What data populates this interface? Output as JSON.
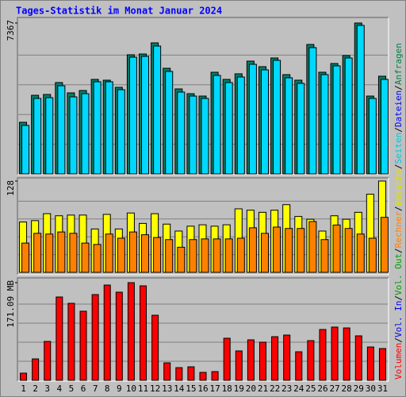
{
  "chart_data": {
    "type": "bar",
    "title": "Tages-Statistik im Monat Januar 2024",
    "categories": [
      "1",
      "2",
      "3",
      "4",
      "5",
      "6",
      "7",
      "8",
      "9",
      "10",
      "11",
      "12",
      "13",
      "14",
      "15",
      "16",
      "17",
      "18",
      "19",
      "20",
      "21",
      "22",
      "23",
      "24",
      "25",
      "26",
      "27",
      "28",
      "29",
      "30",
      "31"
    ],
    "category_colors": [
      "#000",
      "#000",
      "#000",
      "#000",
      "#000",
      "#008040",
      "#008040",
      "#000",
      "#000",
      "#000",
      "#000",
      "#000",
      "#008040",
      "#008040",
      "#000",
      "#000",
      "#000",
      "#000",
      "#000",
      "#008040",
      "#008040",
      "#000",
      "#000",
      "#000",
      "#000",
      "#000",
      "#008040",
      "#008040",
      "#000",
      "#000",
      "#000"
    ],
    "legend_separator": "/",
    "legend": [
      {
        "name": "Volumen",
        "color": "#ff0000"
      },
      {
        "name": "Vol. In",
        "color": "#0000ff"
      },
      {
        "name": "Vol. Out",
        "color": "#00a000"
      },
      {
        "name": "Rechner",
        "color": "#ff8000"
      },
      {
        "name": "Besuche",
        "color": "#e0e000"
      },
      {
        "name": "Seiten",
        "color": "#00c8e0"
      },
      {
        "name": "Dateien",
        "color": "#0000ff"
      },
      {
        "name": "Anfragen",
        "color": "#008040"
      }
    ],
    "panels": [
      {
        "ylim": [
          0,
          7367
        ],
        "yticks": [
          7367
        ],
        "series": [
          {
            "name": "Anfragen",
            "color": "#00806a",
            "values": [
              2443,
              3782,
              3822,
              4413,
              3901,
              4019,
              4570,
              4531,
              4176,
              5792,
              5831,
              6383,
              5122,
              4098,
              3861,
              3743,
              4925,
              4570,
              4846,
              5477,
              5201,
              5634,
              4807,
              4531,
              6304,
              4925,
              5358,
              5752,
              7367,
              3743,
              4728
            ]
          },
          {
            "name": "Seiten",
            "color": "#00d8ff",
            "values": [
              2364,
              3704,
              3743,
              4334,
              3782,
              3940,
              4531,
              4531,
              4137,
              5752,
              5792,
              6304,
              5043,
              4019,
              3822,
              3704,
              4846,
              4492,
              4767,
              5398,
              5122,
              5595,
              4728,
              4452,
              6225,
              4886,
              5319,
              5713,
              7328,
              3704,
              4649
            ]
          }
        ]
      },
      {
        "ylim": [
          0,
          128
        ],
        "yticks": [
          128
        ],
        "series": [
          {
            "name": "Besuche",
            "color": "#ffff00",
            "values": [
              69,
              71,
              81,
              78,
              79,
              79,
              59,
              80,
              59,
              82,
              67,
              81,
              66,
              56,
              63,
              65,
              63,
              65,
              88,
              86,
              83,
              86,
              94,
              77,
              73,
              56,
              78,
              73,
              83,
              109,
              128
            ]
          },
          {
            "name": "Rechner",
            "color": "#ff8000",
            "values": [
              41,
              55,
              54,
              57,
              55,
              41,
              39,
              54,
              48,
              57,
              53,
              49,
              46,
              35,
              46,
              47,
              47,
              47,
              48,
              63,
              55,
              64,
              62,
              62,
              72,
              46,
              67,
              62,
              54,
              48,
              78
            ]
          }
        ]
      },
      {
        "ylim": [
          0,
          171.09
        ],
        "yticks": [
          {
            "value": 171.09,
            "label": "171.09 MB"
          }
        ],
        "series": [
          {
            "name": "Volumen",
            "color": "#ff0000",
            "values": [
              8.6,
              34.2,
              65.6,
              145.4,
              134,
              119.8,
              149.7,
              166.8,
              154,
              171.09,
              165.4,
              112.6,
              27.1,
              18.5,
              20,
              10,
              11.4,
              71.3,
              48.5,
              68.4,
              64.2,
              74.1,
              77,
              47,
              67,
              87,
              91.3,
              89.8,
              75.6,
              55.6,
              52.8
            ]
          }
        ]
      }
    ]
  }
}
